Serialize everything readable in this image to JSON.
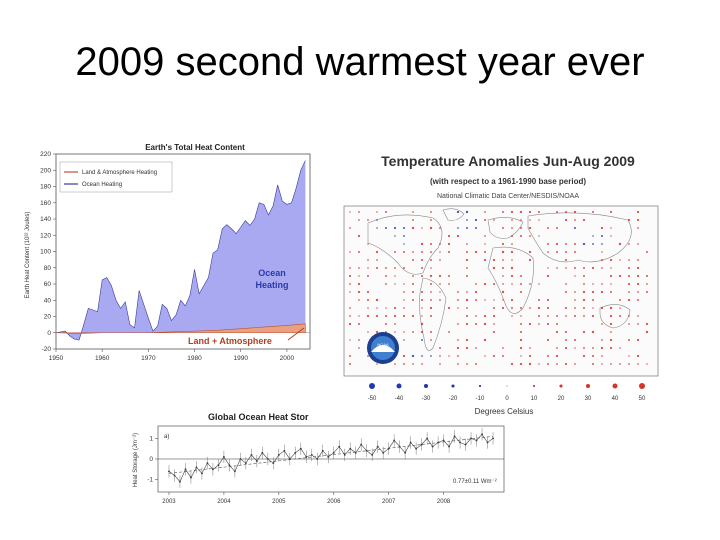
{
  "slide": {
    "title": "2009 second warmest year ever"
  },
  "chart_data": [
    {
      "type": "area",
      "title": "Earth's Total Heat Content",
      "xlabel": "",
      "ylabel": "Earth Heat Content (10²² Joules)",
      "xlim": [
        1950,
        2005
      ],
      "ylim": [
        -20,
        220
      ],
      "xticks": [
        1950,
        1960,
        1970,
        1980,
        1990,
        2000
      ],
      "yticks": [
        -20,
        0,
        20,
        40,
        60,
        80,
        100,
        120,
        140,
        160,
        180,
        200,
        220
      ],
      "legend": [
        "Land & Atmosphere Heating",
        "Ocean Heating"
      ],
      "annotations": {
        "ocean_line1": "Ocean",
        "ocean_line2": "Heating",
        "land": "Land + Atmosphere"
      },
      "colors": {
        "ocean": "#a9a9f2",
        "ocean_edge": "#3a3a9a",
        "land": "#e8a080",
        "land_edge": "#c05030"
      },
      "series": [
        {
          "name": "Ocean Heating",
          "x": [
            1950,
            1952,
            1953,
            1954,
            1955,
            1956,
            1957,
            1958,
            1959,
            1960,
            1961,
            1962,
            1963,
            1964,
            1965,
            1966,
            1967,
            1968,
            1969,
            1970,
            1971,
            1972,
            1973,
            1974,
            1975,
            1976,
            1977,
            1978,
            1979,
            1980,
            1981,
            1982,
            1983,
            1984,
            1985,
            1986,
            1987,
            1988,
            1989,
            1990,
            1991,
            1992,
            1993,
            1994,
            1995,
            1996,
            1997,
            1998,
            1999,
            2000,
            2001,
            2002,
            2003,
            2004
          ],
          "values": [
            0,
            2,
            -4,
            -8,
            -9,
            10,
            30,
            28,
            26,
            65,
            68,
            58,
            40,
            30,
            38,
            10,
            6,
            52,
            35,
            18,
            2,
            8,
            35,
            30,
            15,
            22,
            40,
            33,
            46,
            78,
            48,
            58,
            68,
            98,
            102,
            128,
            133,
            128,
            122,
            130,
            138,
            132,
            140,
            160,
            158,
            145,
            156,
            182,
            162,
            158,
            160,
            178,
            200,
            212
          ]
        },
        {
          "name": "Land + Atmosphere",
          "x": [
            1950,
            1955,
            1960,
            1965,
            1970,
            1975,
            1980,
            1985,
            1990,
            1995,
            2000,
            2004
          ],
          "values": [
            0,
            -1,
            0,
            0,
            0,
            1,
            2,
            3,
            5,
            7,
            9,
            11
          ]
        }
      ]
    },
    {
      "type": "heatmap",
      "title": "Temperature Anomalies Jun-Aug 2009",
      "subtitle": "(with respect to a 1961-1990 base period)",
      "source": "National Climatic Data Center/NESDIS/NOAA",
      "xlabel": "Degrees Celsius",
      "legend_values": [
        -50,
        -40,
        -30,
        -20,
        -10,
        0,
        10,
        20,
        30,
        40,
        50
      ],
      "colors": {
        "warm": "#d8342a",
        "cool": "#2438b0"
      }
    },
    {
      "type": "line",
      "title": "Global Ocean Heat Stor",
      "panel_label": "a)",
      "ylabel": "Heat Storage (Jm⁻²)",
      "xticks": [
        2003,
        2004,
        2005,
        2006,
        2007,
        2008
      ],
      "yticks": [
        -1,
        0,
        1
      ],
      "ylim": [
        -1.6,
        1.6
      ],
      "trend_label": "0.77±0.11 Wm⁻²",
      "x": [
        2003.0,
        2003.1,
        2003.2,
        2003.3,
        2003.4,
        2003.5,
        2003.6,
        2003.7,
        2003.8,
        2003.9,
        2004.0,
        2004.1,
        2004.2,
        2004.3,
        2004.4,
        2004.5,
        2004.6,
        2004.7,
        2004.8,
        2004.9,
        2005.0,
        2005.1,
        2005.2,
        2005.3,
        2005.4,
        2005.5,
        2005.6,
        2005.7,
        2005.8,
        2005.9,
        2006.0,
        2006.1,
        2006.2,
        2006.3,
        2006.4,
        2006.5,
        2006.6,
        2006.7,
        2006.8,
        2006.9,
        2007.0,
        2007.1,
        2007.2,
        2007.3,
        2007.4,
        2007.5,
        2007.6,
        2007.7,
        2007.8,
        2007.9,
        2008.0,
        2008.1,
        2008.2,
        2008.3,
        2008.4,
        2008.5,
        2008.6,
        2008.7,
        2008.8,
        2008.9
      ],
      "values": [
        -0.6,
        -0.8,
        -1.1,
        -0.5,
        -0.9,
        -0.4,
        -0.7,
        -0.2,
        -0.5,
        -0.3,
        0.1,
        -0.3,
        -0.6,
        0.0,
        -0.2,
        0.2,
        -0.1,
        0.3,
        0.0,
        -0.2,
        0.2,
        0.4,
        0.0,
        0.3,
        0.5,
        0.1,
        0.2,
        0.0,
        0.4,
        0.1,
        0.3,
        0.6,
        0.2,
        0.5,
        0.3,
        0.7,
        0.4,
        0.2,
        0.6,
        0.3,
        0.5,
        0.9,
        0.6,
        0.3,
        0.8,
        0.5,
        0.7,
        1.0,
        0.6,
        0.8,
        0.9,
        0.6,
        1.1,
        0.8,
        0.7,
        1.0,
        0.9,
        1.2,
        0.8,
        1.0
      ]
    }
  ]
}
